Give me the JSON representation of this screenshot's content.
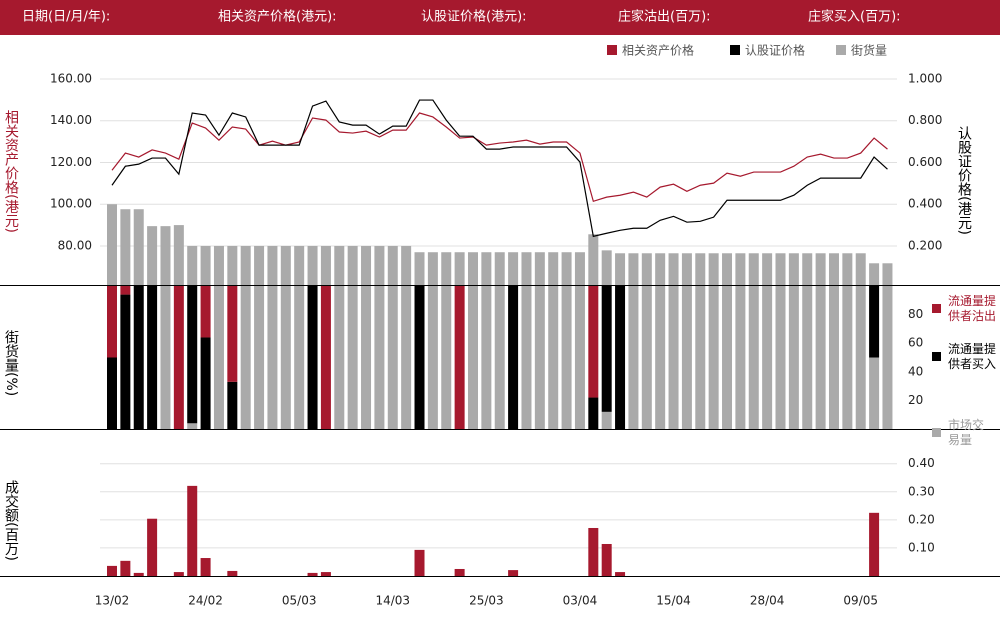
{
  "header": {
    "labels": [
      "日期(日/月/年):",
      "相关资产价格(港元):",
      "认股证价格(港元):",
      "庄家沽出(百万):",
      "庄家买入(百万):"
    ]
  },
  "chart_data": [
    {
      "type": "line",
      "y_label": "相关资产价格",
      "y_unit": "(港元)",
      "y2_label": "认股证价格",
      "y2_unit": "(港元)",
      "ylim": [
        61.3,
        164.3
      ],
      "yticks": [
        {
          "value": 80,
          "label": "80.00"
        },
        {
          "value": 100,
          "label": "100.00"
        },
        {
          "value": 120,
          "label": "120.00"
        },
        {
          "value": 140,
          "label": "140.00"
        },
        {
          "value": 160,
          "label": "160.00"
        }
      ],
      "y2lim": [
        0.013,
        1.043
      ],
      "y2ticks": [
        {
          "value": 0.2,
          "label": "0.200"
        },
        {
          "value": 0.4,
          "label": "0.400"
        },
        {
          "value": 0.6,
          "label": "0.600"
        },
        {
          "value": 0.8,
          "label": "0.800"
        },
        {
          "value": 1,
          "label": "1.000"
        }
      ],
      "grid": true,
      "series": [
        {
          "name": "相关资产价格",
          "color": "#a6192e",
          "type": "line",
          "values": [
            116.3,
            124.5,
            122.6,
            126,
            124.5,
            121.6,
            138.9,
            136.5,
            130.7,
            137,
            136,
            128.3,
            130.2,
            128.3,
            129.8,
            141.3,
            140.3,
            134.6,
            134.1,
            135,
            132.2,
            135.5,
            135.5,
            143.7,
            141.8,
            137,
            131.7,
            132.2,
            128.3,
            129.3,
            129.8,
            130.7,
            128.8,
            129.8,
            129.8,
            124.5,
            101.4,
            103.4,
            104.3,
            105.8,
            103.4,
            108.2,
            109.6,
            106.2,
            109.1,
            110.1,
            114.9,
            113.4,
            115.4,
            115.4,
            115.4,
            118.2,
            122.6,
            124,
            122.1,
            122.1,
            124.5,
            131.7,
            126.4
          ]
        },
        {
          "name": "认股证价格",
          "color": "#000000",
          "type": "line",
          "axis": "y2",
          "values": [
            0.491,
            0.582,
            0.592,
            0.621,
            0.621,
            0.544,
            0.837,
            0.827,
            0.731,
            0.837,
            0.818,
            0.683,
            0.683,
            0.683,
            0.683,
            0.87,
            0.894,
            0.794,
            0.779,
            0.779,
            0.736,
            0.774,
            0.774,
            0.899,
            0.899,
            0.803,
            0.726,
            0.726,
            0.664,
            0.664,
            0.674,
            0.674,
            0.674,
            0.674,
            0.674,
            0.602,
            0.246,
            0.261,
            0.275,
            0.285,
            0.285,
            0.323,
            0.342,
            0.314,
            0.318,
            0.338,
            0.419,
            0.419,
            0.419,
            0.419,
            0.419,
            0.443,
            0.491,
            0.525,
            0.525,
            0.525,
            0.525,
            0.626,
            0.568
          ]
        },
        {
          "name": "街货量",
          "color": "#aaaaaa",
          "type": "bar",
          "values": [
            100,
            97.6,
            97.6,
            89.5,
            89.5,
            90,
            80,
            80,
            80,
            80,
            80,
            80,
            80,
            80,
            80,
            80,
            80,
            80,
            80,
            80,
            80,
            80,
            80,
            77,
            77,
            77,
            77,
            77,
            77,
            77,
            77,
            77,
            77,
            77,
            77,
            77,
            85.6,
            77.9,
            76.5,
            76.5,
            76.5,
            76.5,
            76.5,
            76.5,
            76.5,
            76.5,
            76.5,
            76.5,
            76.5,
            76.5,
            76.5,
            76.5,
            76.5,
            76.5,
            76.5,
            76.5,
            76.5,
            71.7,
            71.7
          ]
        }
      ]
    },
    {
      "type": "stacked_bar",
      "y_label": "街货量",
      "y_unit": "(%)",
      "ylim": [
        0,
        100
      ],
      "yticks": [
        20,
        40,
        60,
        80
      ],
      "series": [
        {
          "name": "流通量提供者沽出",
          "color": "#a6192e",
          "values": [
            50,
            6,
            0,
            0,
            0,
            100,
            0,
            36,
            0,
            67,
            0,
            0,
            0,
            0,
            0,
            0,
            100,
            0,
            0,
            0,
            0,
            0,
            0,
            0,
            0,
            0,
            100,
            0,
            0,
            0,
            0,
            0,
            0,
            0,
            0,
            0,
            78,
            0,
            0,
            0,
            0,
            0,
            0,
            0,
            0,
            0,
            0,
            0,
            0,
            0,
            0,
            0,
            0,
            0,
            0,
            0,
            0,
            0,
            0
          ]
        },
        {
          "name": "流通量提供者买入",
          "color": "#000000",
          "values": [
            50,
            94,
            100,
            100,
            0,
            0,
            96,
            64,
            0,
            33,
            0,
            0,
            0,
            0,
            0,
            100,
            0,
            0,
            0,
            0,
            0,
            0,
            0,
            100,
            0,
            0,
            0,
            0,
            0,
            0,
            100,
            0,
            0,
            0,
            0,
            0,
            22,
            88,
            100,
            0,
            0,
            0,
            0,
            0,
            0,
            0,
            0,
            0,
            0,
            0,
            0,
            0,
            0,
            0,
            0,
            0,
            0,
            50,
            0
          ]
        },
        {
          "name": "市场交易量",
          "color": "#aaaaaa",
          "values": [
            0,
            0,
            0,
            0,
            100,
            0,
            4,
            0,
            100,
            0,
            100,
            100,
            100,
            100,
            100,
            0,
            0,
            100,
            100,
            100,
            100,
            100,
            100,
            0,
            100,
            100,
            0,
            100,
            100,
            100,
            0,
            100,
            100,
            100,
            100,
            100,
            0,
            12,
            0,
            100,
            100,
            100,
            100,
            100,
            100,
            100,
            100,
            100,
            100,
            100,
            100,
            100,
            100,
            100,
            100,
            100,
            100,
            50,
            100
          ]
        }
      ]
    },
    {
      "type": "bar",
      "y_label": "成交额",
      "y_unit": "(百万)",
      "ylim": [
        0,
        0.52
      ],
      "grid": true,
      "yticks": [
        {
          "value": 0.1,
          "label": "0.10"
        },
        {
          "value": 0.2,
          "label": "0.20"
        },
        {
          "value": 0.3,
          "label": "0.30"
        },
        {
          "value": 0.4,
          "label": "0.40"
        }
      ],
      "color": "#a6192e",
      "categories": [
        "13/02",
        null,
        null,
        null,
        null,
        null,
        null,
        "24/02",
        null,
        null,
        null,
        null,
        null,
        null,
        "05/03",
        null,
        null,
        null,
        null,
        null,
        null,
        "14/03",
        null,
        null,
        null,
        null,
        null,
        null,
        "25/03",
        null,
        null,
        null,
        null,
        null,
        null,
        "03/04",
        null,
        null,
        null,
        null,
        null,
        null,
        "15/04",
        null,
        null,
        null,
        null,
        null,
        null,
        "28/04",
        null,
        null,
        null,
        null,
        null,
        null,
        "09/05",
        null,
        null
      ],
      "values": [
        0.036,
        0.054,
        0.011,
        0.204,
        0,
        0.014,
        0.321,
        0.064,
        0,
        0.018,
        0,
        0,
        0,
        0,
        0,
        0.011,
        0.014,
        0,
        0,
        0,
        0,
        0,
        0,
        0.093,
        0,
        0,
        0.025,
        0,
        0,
        0,
        0.021,
        0,
        0,
        0,
        0,
        0,
        0.171,
        0.114,
        0.014,
        0,
        0,
        0,
        0,
        0,
        0,
        0,
        0,
        0,
        0,
        0,
        0,
        0,
        0,
        0,
        0,
        0,
        0,
        0.225,
        0
      ]
    }
  ]
}
